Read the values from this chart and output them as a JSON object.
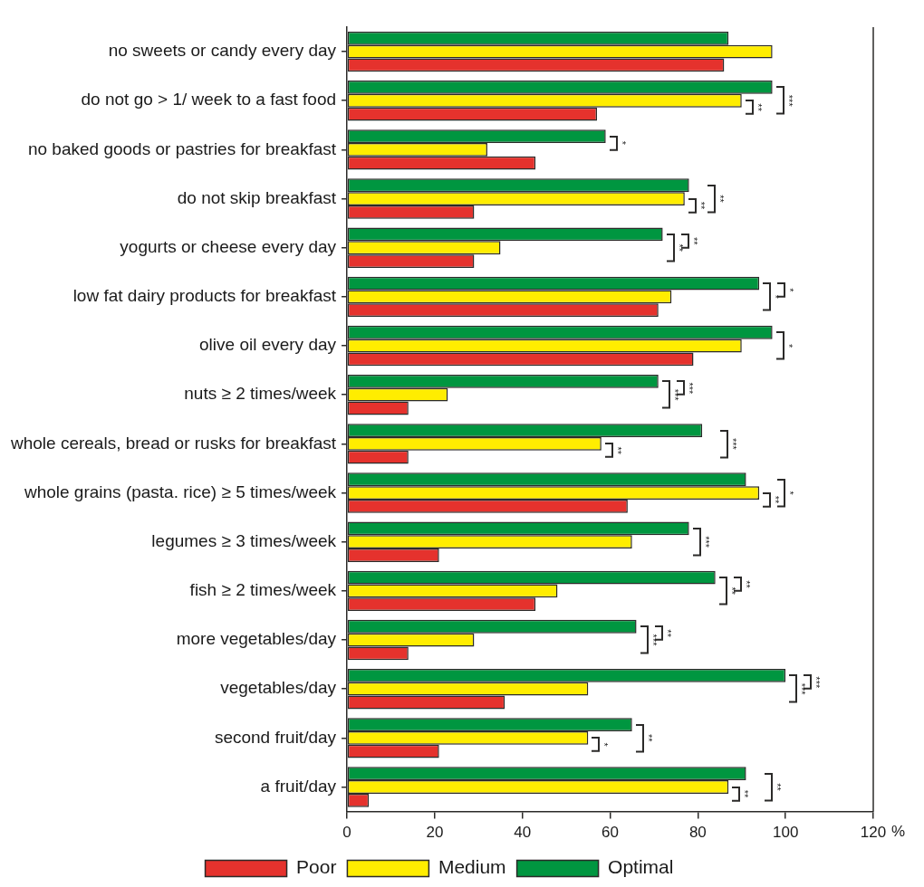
{
  "chart_data": {
    "type": "bar",
    "orientation": "horizontal",
    "xlabel": "%",
    "categories": [
      "no sweets or candy every day",
      "do not go > 1/ week to a fast food",
      "no baked goods or pastries for breakfast",
      "do not skip breakfast",
      "yogurts or cheese every day",
      "low fat dairy products for breakfast",
      "olive oil every day",
      "nuts ≥ 2 times/week",
      "whole cereals, bread or rusks for breakfast",
      "whole grains (pasta. rice) ≥ 5 times/week",
      "legumes ≥ 3 times/week",
      "fish ≥ 2 times/week",
      "more vegetables/day",
      "vegetables/day",
      "second fruit/day",
      "a fruit/day"
    ],
    "series": [
      {
        "name": "Poor",
        "color": "#e5322d",
        "values": [
          86,
          57,
          43,
          29,
          29,
          71,
          79,
          14,
          14,
          64,
          21,
          43,
          14,
          36,
          21,
          5
        ]
      },
      {
        "name": "Medium",
        "color": "#ffed00",
        "values": [
          97,
          90,
          32,
          77,
          35,
          74,
          90,
          23,
          58,
          94,
          65,
          48,
          29,
          55,
          55,
          87
        ]
      },
      {
        "name": "Optimal",
        "color": "#009640",
        "values": [
          87,
          97,
          59,
          78,
          72,
          94,
          97,
          71,
          81,
          91,
          78,
          84,
          66,
          100,
          65,
          91
        ]
      }
    ],
    "xlim": [
      0,
      120
    ],
    "xticks": [
      0,
      20,
      40,
      60,
      80,
      100,
      120
    ],
    "grid": false,
    "legend": "bottom",
    "annotations": [
      "**",
      "***",
      "*",
      "**",
      "**",
      "**",
      "**",
      "*",
      "*",
      "*",
      "***",
      "***",
      "**",
      "***",
      "**",
      "*",
      "***",
      "**",
      "**",
      "***",
      "**",
      "***",
      "***",
      "*",
      "**",
      "**",
      "**"
    ]
  }
}
